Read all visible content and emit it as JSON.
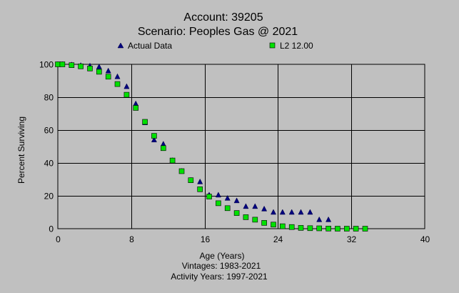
{
  "chart_data": {
    "type": "scatter",
    "title_lines": [
      "Account: 39205",
      "Scenario: Peoples Gas @ 2021"
    ],
    "xlabel": "Age (Years)",
    "ylabel": "Percent Surviving",
    "footer_lines": [
      "Vintages: 1983-2021",
      "Activity Years: 1997-2021"
    ],
    "xlim": [
      0,
      40
    ],
    "ylim": [
      0,
      100
    ],
    "x_ticks": [
      0,
      8,
      16,
      24,
      32,
      40
    ],
    "y_ticks": [
      0,
      20,
      40,
      60,
      80,
      100
    ],
    "grid": true,
    "legend_placement": "top",
    "series": [
      {
        "name": "Actual Data",
        "marker": "triangle",
        "color": "#000080",
        "x": [
          0,
          0.5,
          1.5,
          2.5,
          3.5,
          4.5,
          5.5,
          6.5,
          7.5,
          8.5,
          9.5,
          10.5,
          11.5,
          12.5,
          13.5,
          14.5,
          15.5,
          16.5,
          17.5,
          18.5,
          19.5,
          20.5,
          21.5,
          22.5,
          23.5,
          24.5,
          25.5,
          26.5,
          27.5,
          28.5,
          29.5
        ],
        "y": [
          100,
          100,
          99.7,
          99.3,
          99,
          98.5,
          96,
          92.5,
          86.5,
          76,
          64.5,
          54,
          51.5,
          41.5,
          35,
          29.5,
          28.5,
          20.5,
          20.5,
          18.5,
          17,
          13.5,
          13.5,
          12,
          10,
          10,
          10,
          10,
          10,
          5.5,
          5.5
        ]
      },
      {
        "name": "L2 12.00",
        "marker": "square",
        "color": "#00e000",
        "x": [
          0,
          0.5,
          1.5,
          2.5,
          3.5,
          4.5,
          5.5,
          6.5,
          7.5,
          8.5,
          9.5,
          10.5,
          11.5,
          12.5,
          13.5,
          14.5,
          15.5,
          16.5,
          17.5,
          18.5,
          19.5,
          20.5,
          21.5,
          22.5,
          23.5,
          24.5,
          25.5,
          26.5,
          27.5,
          28.5,
          29.5,
          30.5,
          31.5,
          32.5,
          33.5
        ],
        "y": [
          100,
          100,
          99.5,
          98.8,
          97.5,
          95.5,
          92.5,
          88,
          81.5,
          73.5,
          65,
          56.5,
          49,
          41.5,
          35,
          29.5,
          24,
          19.5,
          15.5,
          12.5,
          9.5,
          7,
          5.5,
          3.5,
          2.5,
          1.5,
          1,
          0.5,
          0.3,
          0.2,
          0.1,
          0,
          0,
          0,
          0
        ]
      }
    ]
  }
}
